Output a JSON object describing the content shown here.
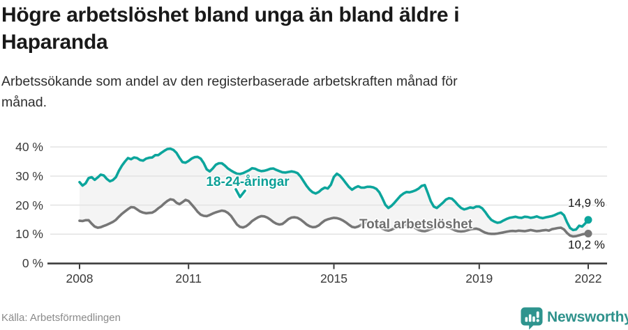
{
  "header": {
    "title_lines": [
      "Högre arbetslöshet bland unga än bland äldre i",
      "Haparanda"
    ],
    "subtitle_lines": [
      "Arbetssökande som andel av den registerbaserade arbetskraften månad för",
      "månad."
    ]
  },
  "footer": {
    "source": "Källa: Arbetsförmedlingen",
    "brand": "Newsworthy",
    "brand_icon": "bar-chart-speech-bubble-icon",
    "brand_color": "#2f928c"
  },
  "colors": {
    "accent_teal": "#0ca59c",
    "line_gray": "#767676",
    "area_fill": "#f4f4f4",
    "gridline": "#e0e0e0",
    "axis": "#3c3c3c",
    "title_text": "#191919",
    "muted_text": "#8a8a8a"
  },
  "chart_data": {
    "type": "line",
    "title": "Högre arbetslöshet bland unga än bland äldre i Haparanda",
    "subtitle": "Arbetssökande som andel av den registerbaserade arbetskraften månad för månad.",
    "x_interval": "monthly",
    "x_start": "2008-01",
    "x_end": "2022-01",
    "x_ticks": [
      2008,
      2011,
      2015,
      2019,
      2022
    ],
    "x_tick_labels": [
      "2008",
      "2011",
      "2015",
      "2019",
      "2022"
    ],
    "y_ticks": [
      0,
      10,
      20,
      30,
      40
    ],
    "y_tick_labels": [
      "0 %",
      "10 %",
      "20 %",
      "30 %",
      "40 %"
    ],
    "ylim": [
      0,
      44
    ],
    "grid": "horizontal",
    "area_fill_between_series": true,
    "area_fill_color": "#f4f4f4",
    "series": [
      {
        "name": "18-24-åringar",
        "color": "#0ca59c",
        "end_label": "14,9 %",
        "end_value": 14.9,
        "values": [
          27.9,
          26.7,
          27.5,
          29.3,
          29.6,
          28.7,
          29.5,
          30.5,
          30.2,
          29.0,
          28.2,
          28.6,
          29.6,
          31.8,
          33.6,
          35.0,
          36.2,
          35.8,
          36.4,
          36.2,
          35.5,
          35.3,
          36.0,
          36.3,
          36.4,
          37.2,
          37.2,
          38.0,
          38.7,
          39.3,
          39.4,
          39.0,
          38.0,
          36.3,
          34.8,
          34.6,
          35.2,
          36.0,
          36.5,
          36.6,
          36.0,
          34.5,
          32.3,
          31.6,
          32.6,
          33.9,
          34.4,
          34.4,
          33.6,
          32.6,
          31.9,
          31.3,
          30.8,
          30.7,
          31.0,
          31.5,
          32.0,
          32.7,
          32.5,
          32.0,
          31.7,
          31.8,
          32.1,
          32.5,
          32.6,
          32.1,
          31.7,
          31.3,
          31.2,
          31.4,
          31.6,
          31.4,
          31.0,
          29.8,
          28.2,
          26.6,
          25.3,
          24.4,
          24.0,
          24.5,
          25.4,
          26.0,
          25.7,
          27.0,
          29.7,
          30.8,
          30.1,
          28.9,
          27.5,
          26.2,
          25.3,
          26.0,
          26.5,
          26.0,
          26.0,
          26.3,
          26.3,
          26.1,
          25.6,
          24.4,
          22.4,
          20.1,
          19.0,
          19.7,
          20.8,
          22.0,
          23.2,
          24.0,
          24.5,
          24.4,
          24.7,
          25.1,
          25.7,
          26.6,
          26.9,
          24.2,
          21.3,
          19.5,
          19.0,
          19.9,
          20.8,
          21.9,
          22.4,
          22.2,
          21.2,
          20.0,
          19.0,
          18.5,
          18.8,
          19.2,
          19.0,
          19.5,
          19.5,
          18.9,
          17.6,
          16.1,
          14.9,
          14.3,
          13.9,
          14.1,
          14.7,
          15.2,
          15.6,
          15.8,
          16.0,
          15.7,
          15.6,
          16.0,
          15.9,
          15.6,
          15.8,
          16.1,
          15.7,
          15.5,
          15.8,
          16.0,
          16.2,
          16.6,
          17.1,
          17.4,
          16.5,
          14.1,
          12.1,
          11.4,
          11.6,
          12.9,
          12.6,
          13.7,
          14.9
        ]
      },
      {
        "name": "Total arbetslöshet",
        "color": "#767676",
        "end_label": "10,2 %",
        "end_value": 10.2,
        "values": [
          14.6,
          14.5,
          14.8,
          14.8,
          13.6,
          12.6,
          12.2,
          12.4,
          12.8,
          13.2,
          13.7,
          14.2,
          14.9,
          16.0,
          17.0,
          17.8,
          18.6,
          19.3,
          19.2,
          18.5,
          17.8,
          17.4,
          17.2,
          17.3,
          17.4,
          18.0,
          18.9,
          19.6,
          20.6,
          21.4,
          22.0,
          21.8,
          20.8,
          20.3,
          21.0,
          21.8,
          21.4,
          20.2,
          19.0,
          17.7,
          16.7,
          16.3,
          16.2,
          16.6,
          17.1,
          17.5,
          17.8,
          18.1,
          17.9,
          17.3,
          16.3,
          14.8,
          13.3,
          12.5,
          12.3,
          12.7,
          13.5,
          14.5,
          15.2,
          15.8,
          16.2,
          16.1,
          15.7,
          15.0,
          14.2,
          13.6,
          13.3,
          13.5,
          14.3,
          15.2,
          15.7,
          15.8,
          15.6,
          15.0,
          14.2,
          13.3,
          12.7,
          12.4,
          12.5,
          13.0,
          13.9,
          14.7,
          15.1,
          15.4,
          15.6,
          15.5,
          15.2,
          14.7,
          14.0,
          13.2,
          12.5,
          12.3,
          12.6,
          13.2,
          13.8,
          14.1,
          14.2,
          14.0,
          13.5,
          12.7,
          11.9,
          11.4,
          11.2,
          11.5,
          12.0,
          12.5,
          12.9,
          13.1,
          13.2,
          13.0,
          12.6,
          12.0,
          11.4,
          11.1,
          11.0,
          11.3,
          11.7,
          12.1,
          12.4,
          12.5,
          12.6,
          12.5,
          12.2,
          11.8,
          11.3,
          11.0,
          10.9,
          11.0,
          11.3,
          11.6,
          11.8,
          11.9,
          11.6,
          11.0,
          10.5,
          10.2,
          10.1,
          10.1,
          10.2,
          10.4,
          10.6,
          10.8,
          11.0,
          11.1,
          11.0,
          11.2,
          11.1,
          11.0,
          11.2,
          11.4,
          11.2,
          11.0,
          11.1,
          11.3,
          11.4,
          11.2,
          11.7,
          11.9,
          12.1,
          12.2,
          11.6,
          10.4,
          9.5,
          9.2,
          9.3,
          9.6,
          9.9,
          10.1,
          10.2
        ]
      }
    ]
  }
}
